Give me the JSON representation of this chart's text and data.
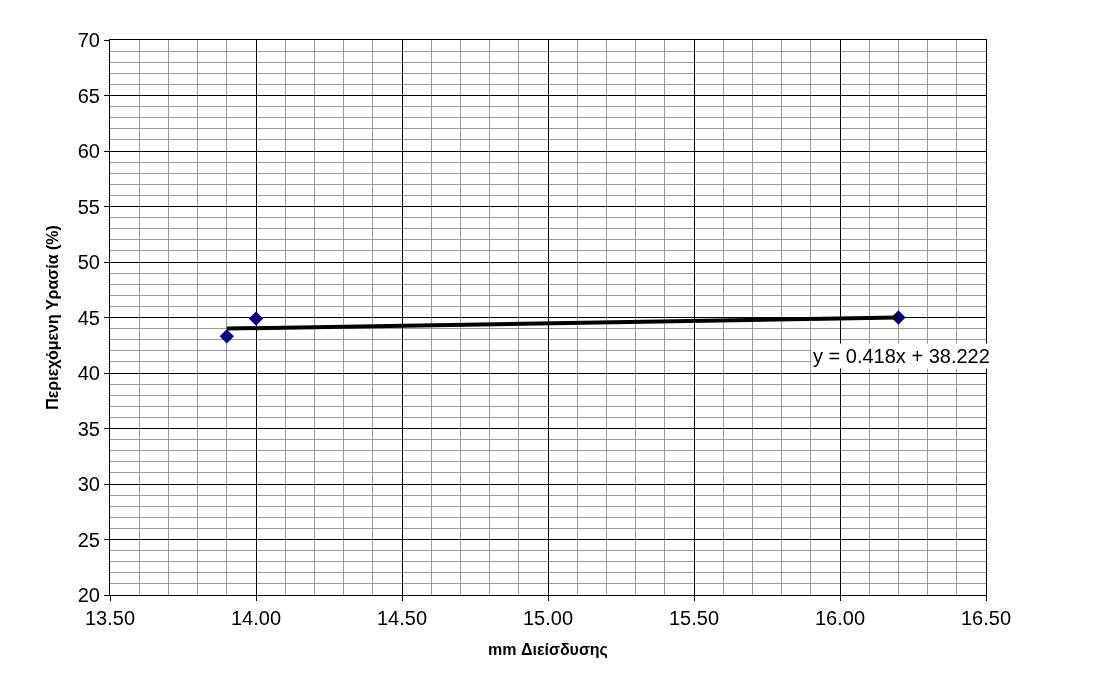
{
  "chart_data": {
    "type": "scatter",
    "xlabel": "mm Διείσδυσης",
    "ylabel": "Περιεχόμενη Υρασία (%)",
    "series": [
      {
        "color": "#000080",
        "marker": "diamond",
        "x": [
          13.9,
          14.0,
          16.2
        ],
        "values": [
          43.3,
          44.9,
          45.0
        ]
      },
      {
        "type": "line",
        "color": "#000000",
        "marker": "none",
        "x": [
          13.9,
          16.2
        ],
        "values": [
          44.0,
          45.0
        ]
      }
    ],
    "annotations": [
      "y = 0.418x + 38.222"
    ],
    "xlim": [
      13.5,
      16.5
    ],
    "xticks": [
      {
        "value": 13.5,
        "label": "13.50"
      },
      {
        "value": 14.0,
        "label": "14.00"
      },
      {
        "value": 14.5,
        "label": "14.50"
      },
      {
        "value": 15.0,
        "label": "15.00"
      },
      {
        "value": 15.5,
        "label": "15.50"
      },
      {
        "value": 16.0,
        "label": "16.00"
      },
      {
        "value": 16.5,
        "label": "16.50"
      }
    ],
    "ylim": [
      20,
      70
    ],
    "yticks": [
      20,
      25,
      30,
      35,
      40,
      45,
      50,
      55,
      60,
      65,
      70
    ],
    "grid": true,
    "legend": false
  }
}
